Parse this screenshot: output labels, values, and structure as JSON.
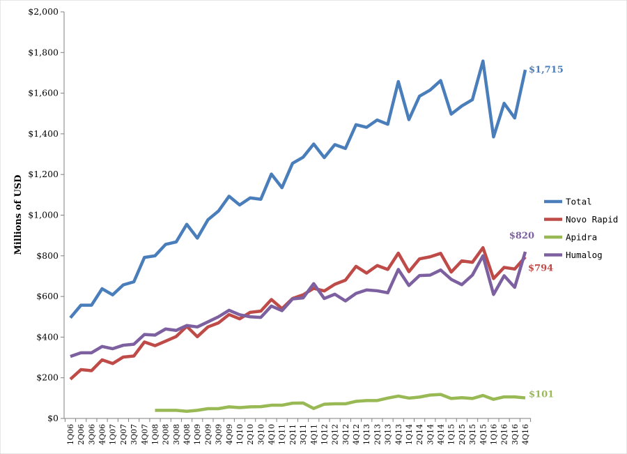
{
  "chart_data": {
    "type": "line",
    "title": "",
    "xlabel": "",
    "ylabel": "Millions of USD",
    "ylim": [
      0,
      2000
    ],
    "yticks": [
      0,
      200,
      400,
      600,
      800,
      1000,
      1200,
      1400,
      1600,
      1800,
      2000
    ],
    "ytick_labels": [
      "$0",
      "$200",
      "$400",
      "$600",
      "$800",
      "$1,000",
      "$1,200",
      "$1,400",
      "$1,600",
      "$1,800",
      "$2,000"
    ],
    "grid": false,
    "legend_position": "right",
    "categories": [
      "1Q06",
      "2Q06",
      "3Q06",
      "4Q06",
      "1Q07",
      "2Q07",
      "3Q07",
      "4Q07",
      "1Q08",
      "2Q08",
      "3Q08",
      "4Q08",
      "1Q09",
      "2Q09",
      "3Q09",
      "4Q09",
      "1Q10",
      "2Q10",
      "3Q10",
      "4Q10",
      "1Q11",
      "2Q11",
      "3Q11",
      "4Q11",
      "1Q12",
      "2Q12",
      "3Q12",
      "4Q12",
      "1Q13",
      "2Q13",
      "3Q13",
      "4Q13",
      "1Q14",
      "2Q14",
      "3Q14",
      "4Q14",
      "1Q15",
      "2Q15",
      "3Q15",
      "4Q15",
      "1Q16",
      "2Q16",
      "3Q16",
      "4Q16"
    ],
    "series": [
      {
        "name": "Total",
        "color": "#4a7ebb",
        "end_label": "$1,715",
        "values": [
          495,
          557,
          557,
          638,
          608,
          657,
          672,
          792,
          800,
          856,
          868,
          955,
          887,
          977,
          1020,
          1093,
          1050,
          1085,
          1078,
          1202,
          1135,
          1255,
          1285,
          1350,
          1283,
          1347,
          1328,
          1445,
          1432,
          1468,
          1447,
          1657,
          1470,
          1585,
          1615,
          1662,
          1497,
          1537,
          1568,
          1758,
          1385,
          1550,
          1478,
          1715
        ]
      },
      {
        "name": "Novo Rapid",
        "color": "#be4b48",
        "end_label": "$794",
        "values": [
          193,
          240,
          235,
          288,
          270,
          302,
          307,
          376,
          358,
          380,
          403,
          453,
          402,
          450,
          470,
          511,
          490,
          522,
          528,
          585,
          540,
          590,
          608,
          640,
          627,
          660,
          680,
          748,
          715,
          752,
          733,
          813,
          722,
          785,
          795,
          812,
          720,
          775,
          768,
          840,
          688,
          743,
          735,
          794
        ]
      },
      {
        "name": "Apidra",
        "color": "#98b954",
        "end_label": "$101",
        "values": [
          null,
          null,
          null,
          null,
          null,
          null,
          null,
          null,
          40,
          40,
          40,
          35,
          40,
          48,
          48,
          57,
          53,
          57,
          58,
          65,
          65,
          75,
          76,
          49,
          70,
          72,
          72,
          84,
          88,
          88,
          100,
          110,
          100,
          105,
          115,
          118,
          98,
          102,
          98,
          113,
          94,
          106,
          106,
          101
        ]
      },
      {
        "name": "Humalog",
        "color": "#7d60a0",
        "end_label": "$820",
        "values": [
          305,
          323,
          323,
          354,
          343,
          360,
          365,
          413,
          410,
          440,
          433,
          457,
          450,
          475,
          500,
          532,
          510,
          500,
          497,
          553,
          530,
          588,
          593,
          663,
          590,
          611,
          578,
          615,
          632,
          628,
          618,
          733,
          654,
          703,
          705,
          730,
          684,
          658,
          705,
          800,
          610,
          702,
          645,
          820
        ]
      }
    ]
  }
}
